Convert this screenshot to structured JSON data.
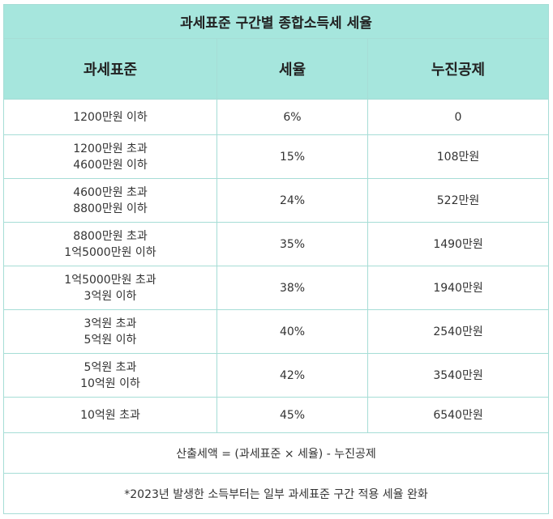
{
  "title": "과세표준 구간별 종합소득세 세율",
  "headers": {
    "bracket": "과세표준",
    "rate": "세율",
    "deduction": "누진공제"
  },
  "rows": [
    {
      "bracket_line1": "1200만원 이하",
      "bracket_line2": "",
      "rate": "6%",
      "deduction": "0"
    },
    {
      "bracket_line1": "1200만원 초과",
      "bracket_line2": "4600만원 이하",
      "rate": "15%",
      "deduction": "108만원"
    },
    {
      "bracket_line1": "4600만원 초과",
      "bracket_line2": "8800만원 이하",
      "rate": "24%",
      "deduction": "522만원"
    },
    {
      "bracket_line1": "8800만원 초과",
      "bracket_line2": "1억5000만원 이하",
      "rate": "35%",
      "deduction": "1490만원"
    },
    {
      "bracket_line1": "1억5000만원 초과",
      "bracket_line2": "3억원 이하",
      "rate": "38%",
      "deduction": "1940만원"
    },
    {
      "bracket_line1": "3억원 초과",
      "bracket_line2": "5억원 이하",
      "rate": "40%",
      "deduction": "2540만원"
    },
    {
      "bracket_line1": "5억원 초과",
      "bracket_line2": "10억원 이하",
      "rate": "42%",
      "deduction": "3540만원"
    },
    {
      "bracket_line1": "10억원 초과",
      "bracket_line2": "",
      "rate": "45%",
      "deduction": "6540만원"
    }
  ],
  "formula": "산출세액 = (과세표준 × 세율) - 누진공제",
  "note": "*2023년 발생한 소득부터는 일부 과세표준 구간 적용 세율 완화",
  "colors": {
    "header_bg": "#a6e6dd",
    "border": "#a6ddd6"
  }
}
